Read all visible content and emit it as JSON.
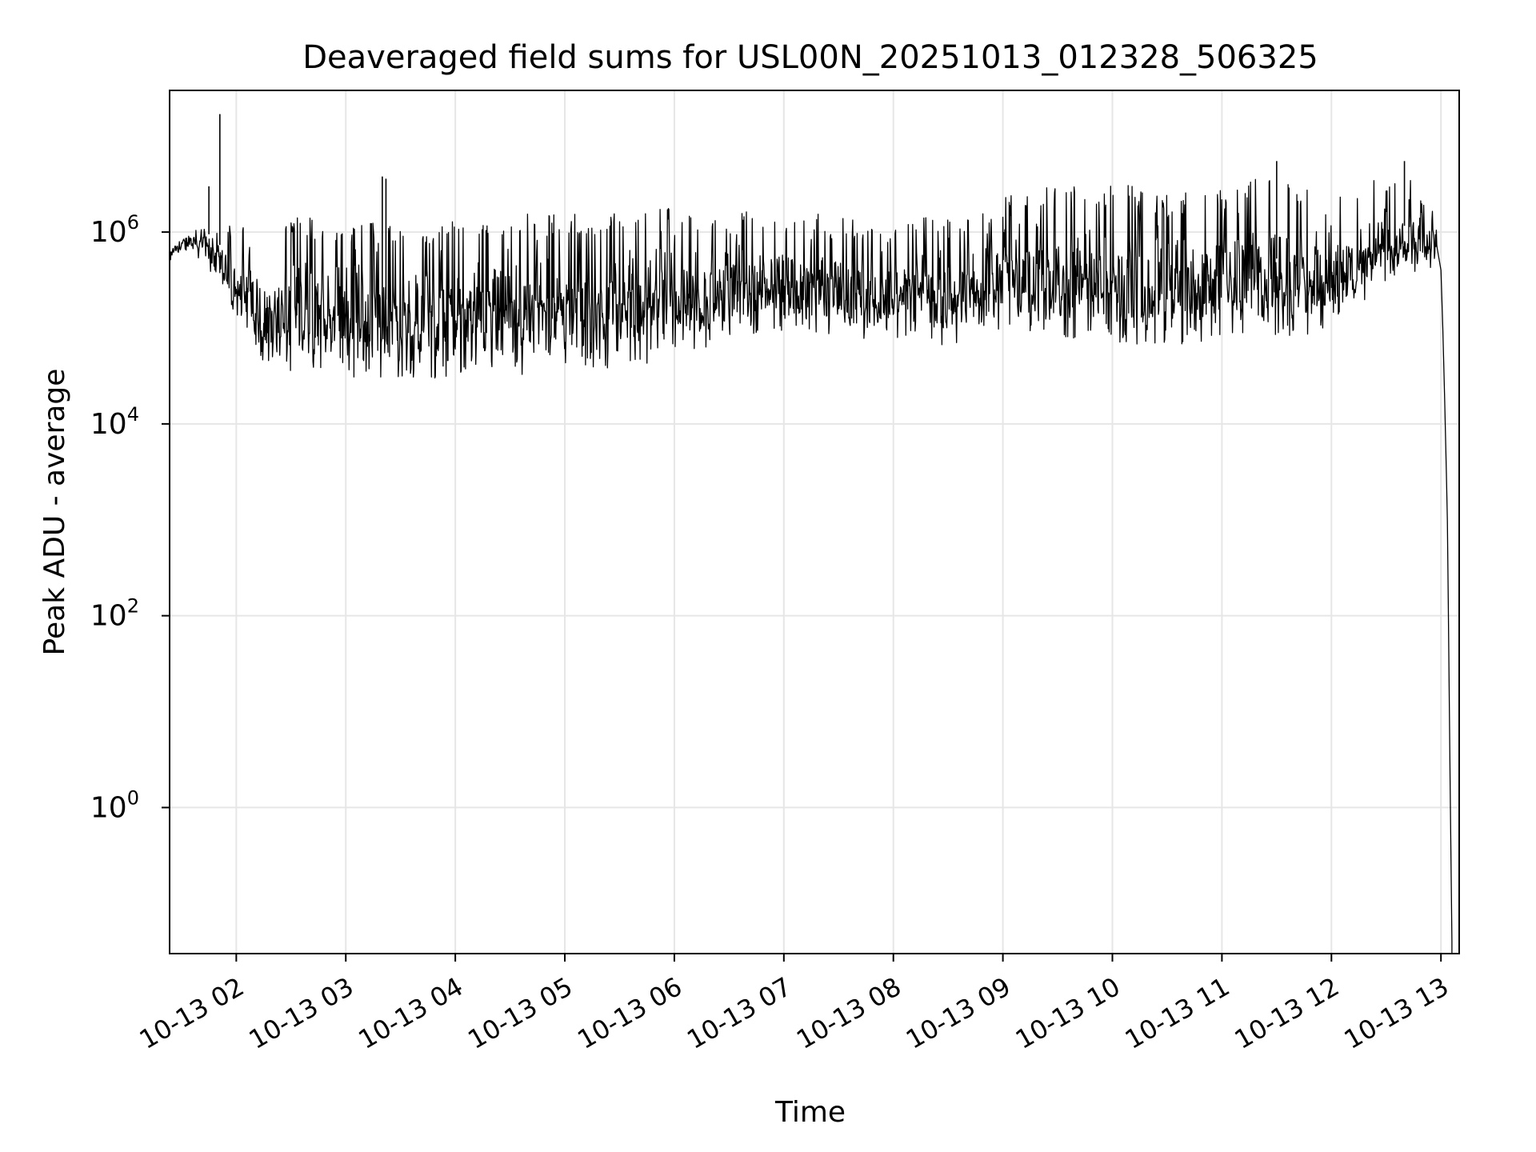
{
  "chart_data": {
    "type": "line",
    "title": "Deaveraged field sums for USL00N_20251013_012328_506325",
    "xlabel": "Time",
    "ylabel": "Peak ADU - average",
    "yscale": "log",
    "ylim": [
      0.03,
      30000000.0
    ],
    "xlim": [
      "2025-10-13 01:23:28",
      "2025-10-13 13:10:00"
    ],
    "grid": true,
    "x_ticks": [
      {
        "t": "2025-10-13 02:00",
        "label": "10-13 02"
      },
      {
        "t": "2025-10-13 03:00",
        "label": "10-13 03"
      },
      {
        "t": "2025-10-13 04:00",
        "label": "10-13 04"
      },
      {
        "t": "2025-10-13 05:00",
        "label": "10-13 05"
      },
      {
        "t": "2025-10-13 06:00",
        "label": "10-13 06"
      },
      {
        "t": "2025-10-13 07:00",
        "label": "10-13 07"
      },
      {
        "t": "2025-10-13 08:00",
        "label": "10-13 08"
      },
      {
        "t": "2025-10-13 09:00",
        "label": "10-13 09"
      },
      {
        "t": "2025-10-13 10:00",
        "label": "10-13 10"
      },
      {
        "t": "2025-10-13 11:00",
        "label": "10-13 11"
      },
      {
        "t": "2025-10-13 12:00",
        "label": "10-13 12"
      },
      {
        "t": "2025-10-13 13:00",
        "label": "10-13 13"
      }
    ],
    "y_ticks": [
      {
        "value": 1,
        "base": "10",
        "exp": "0"
      },
      {
        "value": 100,
        "base": "10",
        "exp": "2"
      },
      {
        "value": 10000,
        "base": "10",
        "exp": "4"
      },
      {
        "value": 1000000,
        "base": "10",
        "exp": "6"
      }
    ],
    "series_color": "#000000",
    "grid_color": "#e6e6e6",
    "series": [
      {
        "envelope": [
          {
            "t": "2025-10-13 01:23:28",
            "low": 450000,
            "high": 800000
          },
          {
            "t": "2025-10-13 01:35",
            "low": 600000,
            "high": 1500000
          },
          {
            "t": "2025-10-13 01:48",
            "low": 300000,
            "high": 1800000
          },
          {
            "t": "2025-10-13 02:00",
            "low": 100000,
            "high": 1200000
          },
          {
            "t": "2025-10-13 02:15",
            "low": 40000,
            "high": 900000
          },
          {
            "t": "2025-10-13 02:30",
            "low": 35000,
            "high": 1500000
          },
          {
            "t": "2025-10-13 03:00",
            "low": 30000,
            "high": 1300000
          },
          {
            "t": "2025-10-13 03:30",
            "low": 28000,
            "high": 1200000
          },
          {
            "t": "2025-10-13 04:00",
            "low": 30000,
            "high": 1500000
          },
          {
            "t": "2025-10-13 05:00",
            "low": 32000,
            "high": 1600000
          },
          {
            "t": "2025-10-13 05:45",
            "low": 40000,
            "high": 1700000
          },
          {
            "t": "2025-10-13 06:00",
            "low": 55000,
            "high": 1800000
          },
          {
            "t": "2025-10-13 06:30",
            "low": 70000,
            "high": 1700000
          },
          {
            "t": "2025-10-13 07:00",
            "low": 90000,
            "high": 1600000
          },
          {
            "t": "2025-10-13 07:30",
            "low": 70000,
            "high": 1500000
          },
          {
            "t": "2025-10-13 08:00",
            "low": 80000,
            "high": 1300000
          },
          {
            "t": "2025-10-13 08:30",
            "low": 60000,
            "high": 1500000
          },
          {
            "t": "2025-10-13 09:00",
            "low": 100000,
            "high": 2500000
          },
          {
            "t": "2025-10-13 09:30",
            "low": 80000,
            "high": 3000000
          },
          {
            "t": "2025-10-13 10:00",
            "low": 70000,
            "high": 3500000
          },
          {
            "t": "2025-10-13 10:30",
            "low": 60000,
            "high": 2500000
          },
          {
            "t": "2025-10-13 11:00",
            "low": 80000,
            "high": 3500000
          },
          {
            "t": "2025-10-13 11:30",
            "low": 70000,
            "high": 4000000
          },
          {
            "t": "2025-10-13 12:00",
            "low": 100000,
            "high": 2500000
          },
          {
            "t": "2025-10-13 12:30",
            "low": 300000,
            "high": 4500000
          },
          {
            "t": "2025-10-13 12:58",
            "low": 400000,
            "high": 2800000
          }
        ],
        "spikes": [
          {
            "t": "2025-10-13 01:51",
            "value": 17000000
          },
          {
            "t": "2025-10-13 01:45",
            "value": 3000000
          },
          {
            "t": "2025-10-13 03:20",
            "value": 3800000
          },
          {
            "t": "2025-10-13 03:22",
            "value": 3600000
          },
          {
            "t": "2025-10-13 11:30",
            "value": 5500000
          },
          {
            "t": "2025-10-13 12:40",
            "value": 5500000
          }
        ],
        "tail": [
          {
            "t": "2025-10-13 13:00",
            "value": 400000
          },
          {
            "t": "2025-10-13 13:01",
            "value": 100000
          },
          {
            "t": "2025-10-13 13:02",
            "value": 20000
          },
          {
            "t": "2025-10-13 13:03",
            "value": 3000
          },
          {
            "t": "2025-10-13 13:03:30",
            "value": 1000
          },
          {
            "t": "2025-10-13 13:04",
            "value": 150
          },
          {
            "t": "2025-10-13 13:05",
            "value": 2
          },
          {
            "t": "2025-10-13 13:06",
            "value": 0.04
          }
        ]
      }
    ]
  }
}
